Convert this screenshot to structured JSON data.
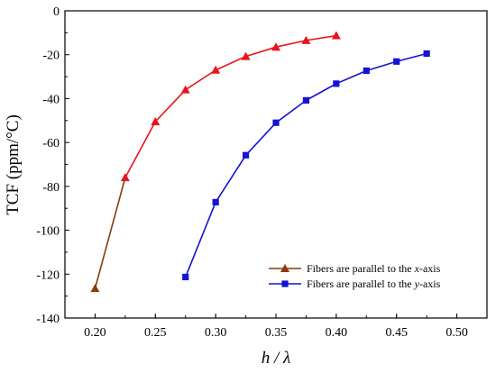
{
  "chart_data": {
    "type": "line",
    "ylabel": "TCF (ppm/°C)",
    "xlabel": "h / λ",
    "xlim": [
      0.175,
      0.525
    ],
    "ylim": [
      -140,
      0
    ],
    "xticks": [
      "0.20",
      "0.25",
      "0.30",
      "0.35",
      "0.40",
      "0.45",
      "0.50"
    ],
    "yticks": [
      "0",
      "-20",
      "-40",
      "-60",
      "-80",
      "-100",
      "-120",
      "-140"
    ],
    "grid": false,
    "legend_position": "lower-right",
    "series": [
      {
        "name": "Fibers are parallel to the x-axis",
        "legend_prefix": "Fibers are parallel to the ",
        "legend_axis": "x",
        "legend_suffix": "-axis",
        "marker": "triangle",
        "color": "#e8141c",
        "accent_color": "#8b3a0e",
        "x": [
          0.2,
          0.225,
          0.25,
          0.275,
          0.3,
          0.325,
          0.35,
          0.375,
          0.4
        ],
        "y": [
          -126.5,
          -76,
          -50.5,
          -36,
          -27,
          -20.8,
          -16.5,
          -13.5,
          -11.3
        ]
      },
      {
        "name": "Fibers are parallel to the y-axis",
        "legend_prefix": "Fibers are parallel to the ",
        "legend_axis": "y",
        "legend_suffix": "-axis",
        "marker": "square",
        "color": "#1414d2",
        "x": [
          0.275,
          0.3,
          0.325,
          0.35,
          0.375,
          0.4,
          0.425,
          0.45,
          0.475
        ],
        "y": [
          -121.3,
          -87.2,
          -65.8,
          -51,
          -40.8,
          -33.2,
          -27.3,
          -23.1,
          -19.5
        ]
      }
    ]
  }
}
